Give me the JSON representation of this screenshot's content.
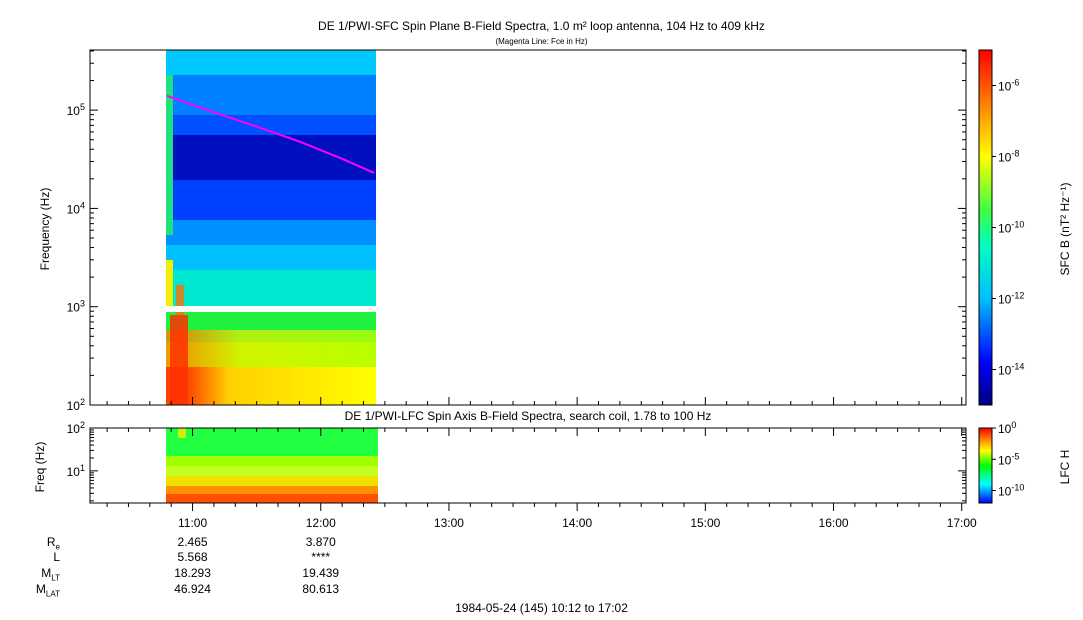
{
  "chart_data": [
    {
      "type": "heatmap",
      "title": "DE 1/PWI-SFC  Spin Plane B-Field Spectra, 1.0 m² loop antenna, 104 Hz to 409 kHz",
      "subtitle": "(Magenta Line: Fce in Hz)",
      "xlabel": "",
      "ylabel": "Frequency (Hz)",
      "yscale": "log",
      "ylim": [
        100,
        409000
      ],
      "y_ticks": [
        "10^2",
        "10^3",
        "10^4",
        "10^5"
      ],
      "xlim": [
        "10:12",
        "17:02"
      ],
      "data_time_range": [
        "10:48",
        "12:25"
      ],
      "colorbar": {
        "label": "SFC B (nT² Hz⁻¹)",
        "scale": "log",
        "range": [
          1e-15,
          1e-05
        ],
        "ticks": [
          "10^-6",
          "10^-8",
          "10^-10",
          "10^-12",
          "10^-14"
        ]
      },
      "overlay_line": {
        "name": "Fce",
        "color": "#ff00ff",
        "points": [
          [
            "10:48",
            140000
          ],
          [
            "11:10",
            95000
          ],
          [
            "11:30",
            68000
          ],
          [
            "11:50",
            48000
          ],
          [
            "12:10",
            32000
          ],
          [
            "12:25",
            23000
          ]
        ]
      }
    },
    {
      "type": "heatmap",
      "title": "DE 1/PWI-LFC  Spin Axis B-Field Spectra, search coil, 1.78 to 100 Hz",
      "ylabel": "Freq (Hz)",
      "yscale": "log",
      "ylim": [
        1.78,
        100
      ],
      "y_ticks": [
        "10^1",
        "10^2"
      ],
      "colorbar": {
        "label": "LFC H",
        "scale": "log",
        "range": [
          1e-12,
          1
        ],
        "ticks": [
          "10^0",
          "10^-5",
          "10^-10"
        ]
      }
    }
  ],
  "time_axis": {
    "tick_labels": [
      "11:00",
      "12:00",
      "13:00",
      "14:00",
      "15:00",
      "16:00",
      "17:00"
    ]
  },
  "ephemeris": {
    "labels": [
      {
        "main": "R",
        "sub": "e"
      },
      {
        "main": "L",
        "sub": ""
      },
      {
        "main": "M",
        "sub": "LT"
      },
      {
        "main": "M",
        "sub": "LAT"
      }
    ],
    "columns": [
      {
        "time": "11:00",
        "values": [
          "2.465",
          "5.568",
          "18.293",
          "46.924"
        ]
      },
      {
        "time": "12:00",
        "values": [
          "3.870",
          "****",
          "19.439",
          "80.613"
        ]
      }
    ]
  },
  "footer": "1984-05-24 (145) 10:12 to 17:02",
  "colors": {
    "fce_line": "#ff00ff",
    "frame": "#000000"
  }
}
